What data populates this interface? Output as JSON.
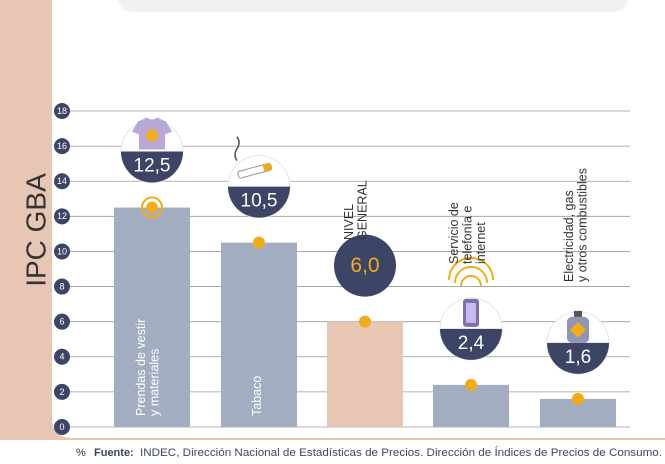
{
  "chart_data": {
    "type": "bar",
    "side_label": "IPC GBA",
    "categories": [
      "Prendas de vestir y materiales",
      "Tabaco",
      "NIVEL GENERAL",
      "Servicio de telefonía e internet",
      "Electricidad, gas y otros combustibles"
    ],
    "values": [
      12.5,
      10.5,
      6.0,
      2.4,
      1.6
    ],
    "value_labels": [
      "12,5",
      "10,5",
      "6,0",
      "2,4",
      "1,6"
    ],
    "colors": [
      "#a3adc1",
      "#a3adc1",
      "#e8c6b4",
      "#a3adc1",
      "#a3adc1"
    ],
    "ylim": [
      0,
      18
    ],
    "yticks": [
      0,
      2,
      4,
      6,
      8,
      10,
      12,
      14,
      16,
      18
    ],
    "grid": true,
    "y_unit": "%",
    "source_label": "Fuente:",
    "source": "INDEC, Dirección Nacional de Estadísticas de Precios. Dirección de Índices de Precios de Consumo."
  }
}
